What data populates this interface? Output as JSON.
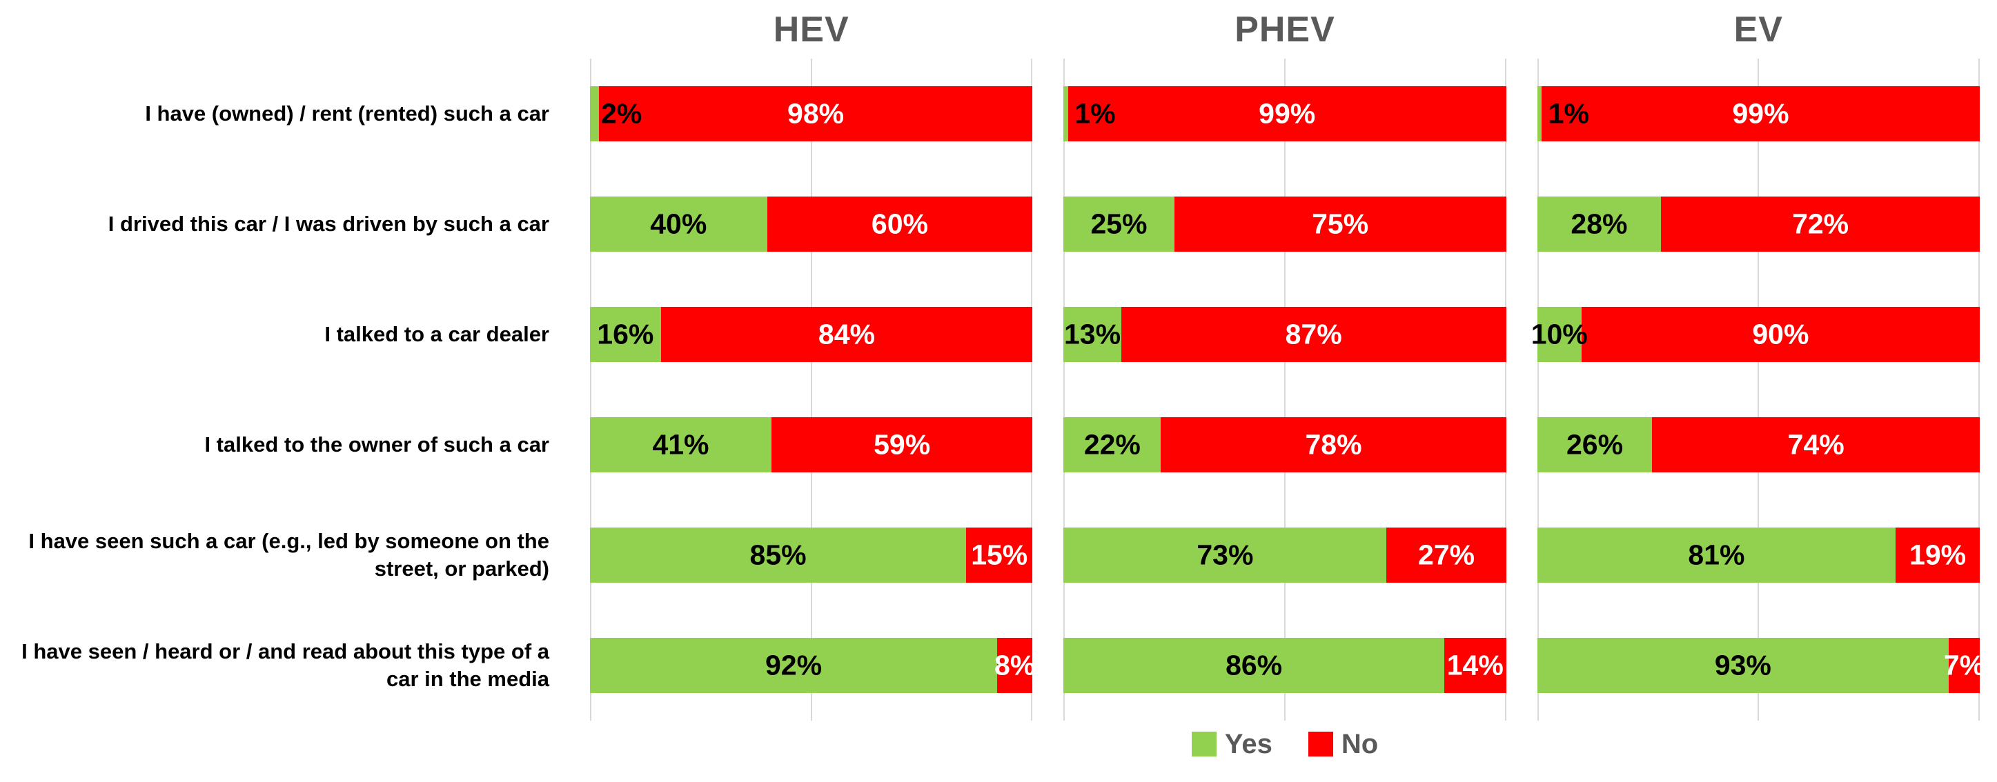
{
  "chart_data": {
    "type": "bar",
    "variant": "horizontal-stacked-percent",
    "title": "",
    "categories": [
      "I have (owned) / rent (rented) such a car",
      "I drived this car / I was driven by such a car",
      "I talked to a car dealer",
      "I talked to the owner of such a car",
      "I have seen such a car (e.g., led by someone on the street, or parked)",
      "I have seen / heard or / and read about this type of a car in the media"
    ],
    "panels": [
      {
        "title": "HEV",
        "series": [
          {
            "name": "Yes",
            "values": [
              2,
              40,
              16,
              41,
              85,
              92
            ]
          },
          {
            "name": "No",
            "values": [
              98,
              60,
              84,
              59,
              15,
              8
            ]
          }
        ]
      },
      {
        "title": "PHEV",
        "series": [
          {
            "name": "Yes",
            "values": [
              1,
              25,
              13,
              22,
              73,
              86
            ]
          },
          {
            "name": "No",
            "values": [
              99,
              75,
              87,
              78,
              27,
              14
            ]
          }
        ]
      },
      {
        "title": "EV",
        "series": [
          {
            "name": "Yes",
            "values": [
              1,
              28,
              10,
              26,
              81,
              93
            ]
          },
          {
            "name": "No",
            "values": [
              99,
              72,
              90,
              74,
              19,
              7
            ]
          }
        ]
      }
    ],
    "legend": {
      "position": "bottom-center",
      "items": [
        {
          "label": "Yes",
          "color": "#92D050"
        },
        {
          "label": "No",
          "color": "#FF0000"
        }
      ]
    },
    "xlim": [
      0,
      100
    ],
    "gridlines_percent": [
      0,
      50,
      100
    ],
    "grid_on": true,
    "colors": {
      "yes": "#92D050",
      "no": "#FF0000",
      "grid": "#D9D9D9",
      "panel_title": "#595959",
      "legend_text": "#595959",
      "value_on_yes": "#000000",
      "value_on_no": "#FFFFFF",
      "category_text": "#000000"
    }
  }
}
